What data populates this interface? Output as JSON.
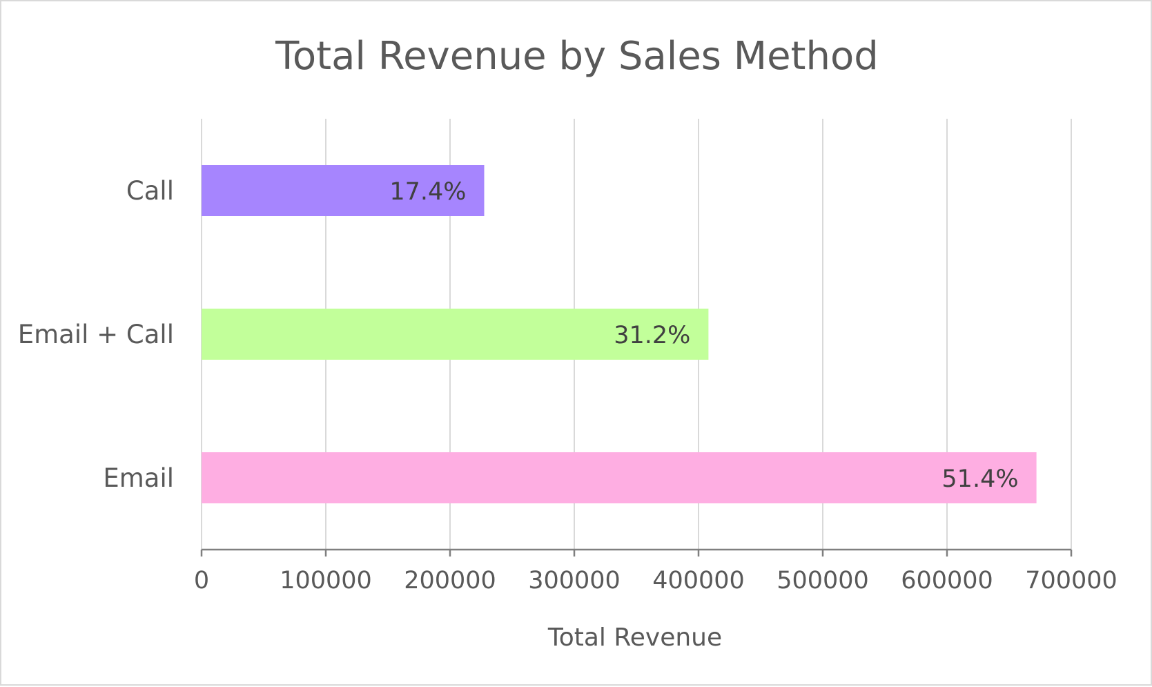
{
  "chart_data": {
    "type": "bar",
    "orientation": "horizontal",
    "title": "Total Revenue by Sales Method",
    "xlabel": "Total Revenue",
    "ylabel": "",
    "categories": [
      "Call",
      "Email + Call",
      "Email"
    ],
    "values": [
      227500,
      408000,
      672000
    ],
    "data_labels": [
      "17.4%",
      "31.2%",
      "51.4%"
    ],
    "colors": [
      "#a685fe",
      "#c2ff9a",
      "#feaee2"
    ],
    "xlim": [
      0,
      700000
    ],
    "x_ticks": [
      0,
      100000,
      200000,
      300000,
      400000,
      500000,
      600000,
      700000
    ],
    "x_tick_labels": [
      "0",
      "100000",
      "200000",
      "300000",
      "400000",
      "500000",
      "600000",
      "700000"
    ],
    "grid": true,
    "legend": "none",
    "gridline_color": "#d9d9d9",
    "axis_color": "#7f7f7f"
  }
}
